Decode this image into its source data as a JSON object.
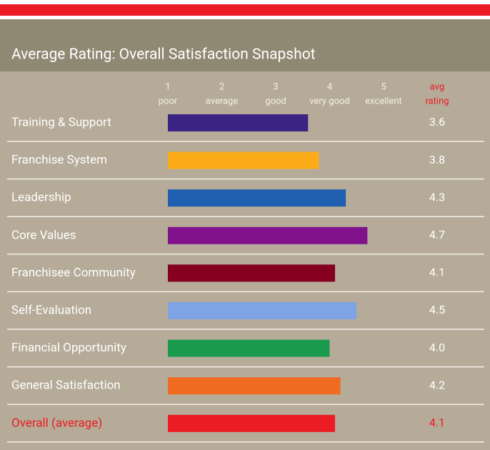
{
  "chart_data": {
    "type": "hbar",
    "title": "Average Rating: Overall Satisfaction Snapshot",
    "value_header": [
      "avg",
      "rating"
    ],
    "categories": [
      "Training & Support",
      "Franchise System",
      "Leadership",
      "Core Values",
      "Franchisee Community",
      "Self-Evaluation",
      "Financial Opportunity",
      "General Satisfaction",
      "Overall (average)"
    ],
    "values": [
      3.6,
      3.8,
      4.3,
      4.7,
      4.1,
      4.5,
      4.0,
      4.2,
      4.1
    ],
    "value_labels": [
      "3.6",
      "3.8",
      "4.3",
      "4.7",
      "4.1",
      "4.5",
      "4.0",
      "4.2",
      "4.1"
    ],
    "colors": [
      "#3b2383",
      "#fbac18",
      "#1f5fb0",
      "#82128c",
      "#85001f",
      "#7fa4e6",
      "#1a9a4c",
      "#f06b22",
      "#ec1c24"
    ],
    "xlim": [
      1,
      5
    ],
    "xticks": [
      1,
      2,
      3,
      4,
      5
    ],
    "xtick_labels": [
      "poor",
      "average",
      "good",
      "very good",
      "excellent"
    ]
  }
}
